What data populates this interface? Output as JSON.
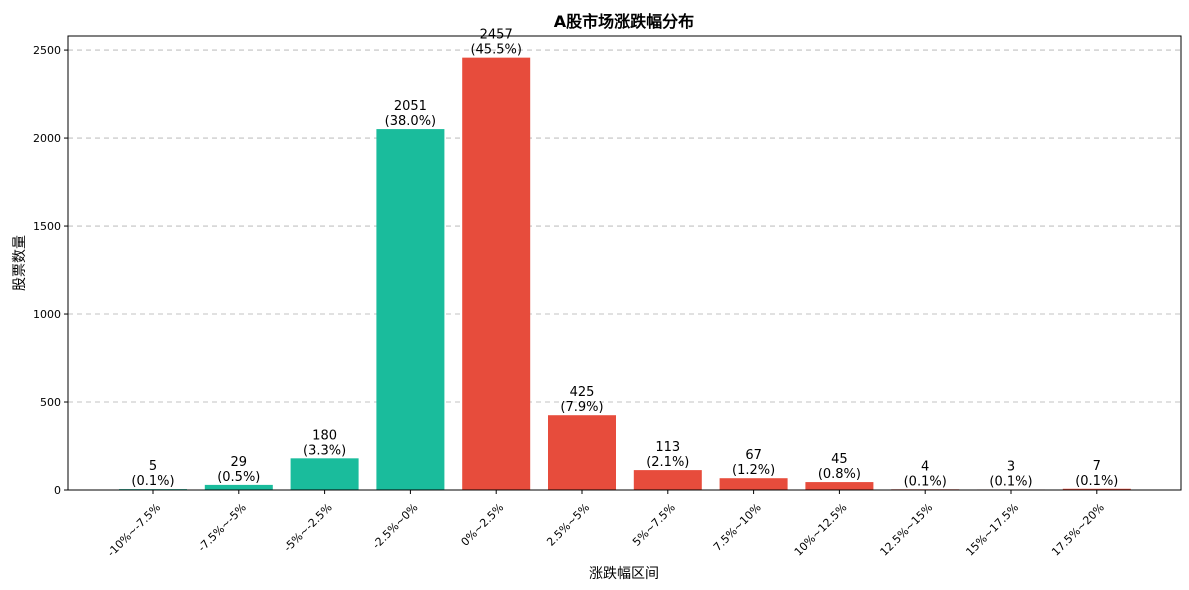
{
  "chart_data": {
    "type": "bar",
    "title": "A股市场涨跌幅分布",
    "xlabel": "涨跌幅区间",
    "ylabel": "股票数量",
    "ylim": [
      0,
      2580
    ],
    "yticks": [
      0,
      500,
      1000,
      1500,
      2000,
      2500
    ],
    "grid": "y-dashed",
    "categories": [
      "-10%~-7.5%",
      "-7.5%~-5%",
      "-5%~-2.5%",
      "-2.5%~0%",
      "0%~2.5%",
      "2.5%~5%",
      "5%~7.5%",
      "7.5%~10%",
      "10%~12.5%",
      "12.5%~15%",
      "15%~17.5%",
      "17.5%~20%"
    ],
    "values": [
      5,
      29,
      180,
      2051,
      2457,
      425,
      113,
      67,
      45,
      4,
      3,
      7
    ],
    "percent_labels": [
      "(0.1%)",
      "(0.5%)",
      "(3.3%)",
      "(38.0%)",
      "(45.5%)",
      "(7.9%)",
      "(2.1%)",
      "(1.2%)",
      "(0.8%)",
      "(0.1%)",
      "(0.1%)",
      "(0.1%)"
    ],
    "colors": {
      "decline": "#1abc9c",
      "rise": "#e74c3c"
    },
    "bar_colors": [
      "decline",
      "decline",
      "decline",
      "decline",
      "rise",
      "rise",
      "rise",
      "rise",
      "rise",
      "rise",
      "rise",
      "rise"
    ]
  }
}
